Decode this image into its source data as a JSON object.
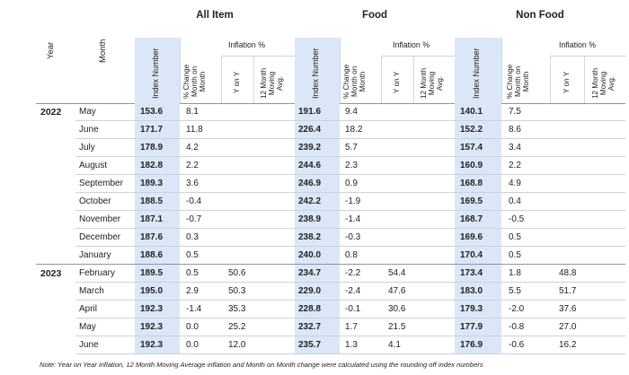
{
  "groups": {
    "all_item": "All Item",
    "food": "Food",
    "non_food": "Non Food"
  },
  "headers": {
    "year": "Year",
    "month": "Month",
    "index_number": "Index Number",
    "mom_line1": "% Change",
    "mom_line2": "Month on",
    "mom_line3": "Month",
    "inflation": "Inflation %",
    "yony": "Y on Y",
    "ma_line1": "12 Month",
    "ma_line2": "Moving",
    "ma_line3": "Avg."
  },
  "rows": [
    {
      "year": "2022",
      "month": "May",
      "all_index": "153.6",
      "all_mom": "8.1",
      "all_yoy": "",
      "all_12m": "",
      "food_index": "191.6",
      "food_mom": "9.4",
      "food_yoy": "",
      "food_12m": "",
      "non_index": "140.1",
      "non_mom": "7.5",
      "non_yoy": "",
      "non_12m": ""
    },
    {
      "year": "",
      "month": "June",
      "all_index": "171.7",
      "all_mom": "11.8",
      "all_yoy": "",
      "all_12m": "",
      "food_index": "226.4",
      "food_mom": "18.2",
      "food_yoy": "",
      "food_12m": "",
      "non_index": "152.2",
      "non_mom": "8.6",
      "non_yoy": "",
      "non_12m": ""
    },
    {
      "year": "",
      "month": "July",
      "all_index": "178.9",
      "all_mom": "4.2",
      "all_yoy": "",
      "all_12m": "",
      "food_index": "239.2",
      "food_mom": "5.7",
      "food_yoy": "",
      "food_12m": "",
      "non_index": "157.4",
      "non_mom": "3.4",
      "non_yoy": "",
      "non_12m": ""
    },
    {
      "year": "",
      "month": "August",
      "all_index": "182.8",
      "all_mom": "2.2",
      "all_yoy": "",
      "all_12m": "",
      "food_index": "244.6",
      "food_mom": "2.3",
      "food_yoy": "",
      "food_12m": "",
      "non_index": "160.9",
      "non_mom": "2.2",
      "non_yoy": "",
      "non_12m": ""
    },
    {
      "year": "",
      "month": "September",
      "all_index": "189.3",
      "all_mom": "3.6",
      "all_yoy": "",
      "all_12m": "",
      "food_index": "246.9",
      "food_mom": "0.9",
      "food_yoy": "",
      "food_12m": "",
      "non_index": "168.8",
      "non_mom": "4.9",
      "non_yoy": "",
      "non_12m": ""
    },
    {
      "year": "",
      "month": "October",
      "all_index": "188.5",
      "all_mom": "-0.4",
      "all_yoy": "",
      "all_12m": "",
      "food_index": "242.2",
      "food_mom": "-1.9",
      "food_yoy": "",
      "food_12m": "",
      "non_index": "169.5",
      "non_mom": "0.4",
      "non_yoy": "",
      "non_12m": ""
    },
    {
      "year": "",
      "month": "November",
      "all_index": "187.1",
      "all_mom": "-0.7",
      "all_yoy": "",
      "all_12m": "",
      "food_index": "238.9",
      "food_mom": "-1.4",
      "food_yoy": "",
      "food_12m": "",
      "non_index": "168.7",
      "non_mom": "-0.5",
      "non_yoy": "",
      "non_12m": ""
    },
    {
      "year": "",
      "month": "December",
      "all_index": "187.6",
      "all_mom": "0.3",
      "all_yoy": "",
      "all_12m": "",
      "food_index": "238.2",
      "food_mom": "-0.3",
      "food_yoy": "",
      "food_12m": "",
      "non_index": "169.6",
      "non_mom": "0.5",
      "non_yoy": "",
      "non_12m": ""
    },
    {
      "year": "",
      "month": "January",
      "all_index": "188.6",
      "all_mom": "0.5",
      "all_yoy": "",
      "all_12m": "",
      "food_index": "240.0",
      "food_mom": "0.8",
      "food_yoy": "",
      "food_12m": "",
      "non_index": "170.4",
      "non_mom": "0.5",
      "non_yoy": "",
      "non_12m": ""
    },
    {
      "year": "2023",
      "month": "February",
      "all_index": "189.5",
      "all_mom": "0.5",
      "all_yoy": "50.6",
      "all_12m": "",
      "food_index": "234.7",
      "food_mom": "-2.2",
      "food_yoy": "54.4",
      "food_12m": "",
      "non_index": "173.4",
      "non_mom": "1.8",
      "non_yoy": "48.8",
      "non_12m": ""
    },
    {
      "year": "",
      "month": "March",
      "all_index": "195.0",
      "all_mom": "2.9",
      "all_yoy": "50.3",
      "all_12m": "",
      "food_index": "229.0",
      "food_mom": "-2.4",
      "food_yoy": "47.6",
      "food_12m": "",
      "non_index": "183.0",
      "non_mom": "5.5",
      "non_yoy": "51.7",
      "non_12m": ""
    },
    {
      "year": "",
      "month": "April",
      "all_index": "192.3",
      "all_mom": "-1.4",
      "all_yoy": "35.3",
      "all_12m": "",
      "food_index": "228.8",
      "food_mom": "-0.1",
      "food_yoy": "30.6",
      "food_12m": "",
      "non_index": "179.3",
      "non_mom": "-2.0",
      "non_yoy": "37.6",
      "non_12m": ""
    },
    {
      "year": "",
      "month": "May",
      "all_index": "192.3",
      "all_mom": "0.0",
      "all_yoy": "25.2",
      "all_12m": "",
      "food_index": "232.7",
      "food_mom": "1.7",
      "food_yoy": "21.5",
      "food_12m": "",
      "non_index": "177.9",
      "non_mom": "-0.8",
      "non_yoy": "27.0",
      "non_12m": ""
    },
    {
      "year": "",
      "month": "June",
      "all_index": "192.3",
      "all_mom": "0.0",
      "all_yoy": "12.0",
      "all_12m": "",
      "food_index": "235.7",
      "food_mom": "1.3",
      "food_yoy": "4.1",
      "food_12m": "",
      "non_index": "176.9",
      "non_mom": "-0.6",
      "non_yoy": "16.2",
      "non_12m": ""
    }
  ],
  "note": "Note: Year on Year inflation, 12 Month Moving Average inflation and Month on Month change were calculated using the rounding off index numbers",
  "colors": {
    "index_shade": "#dbe7f6",
    "grid": "#c9d2de"
  }
}
